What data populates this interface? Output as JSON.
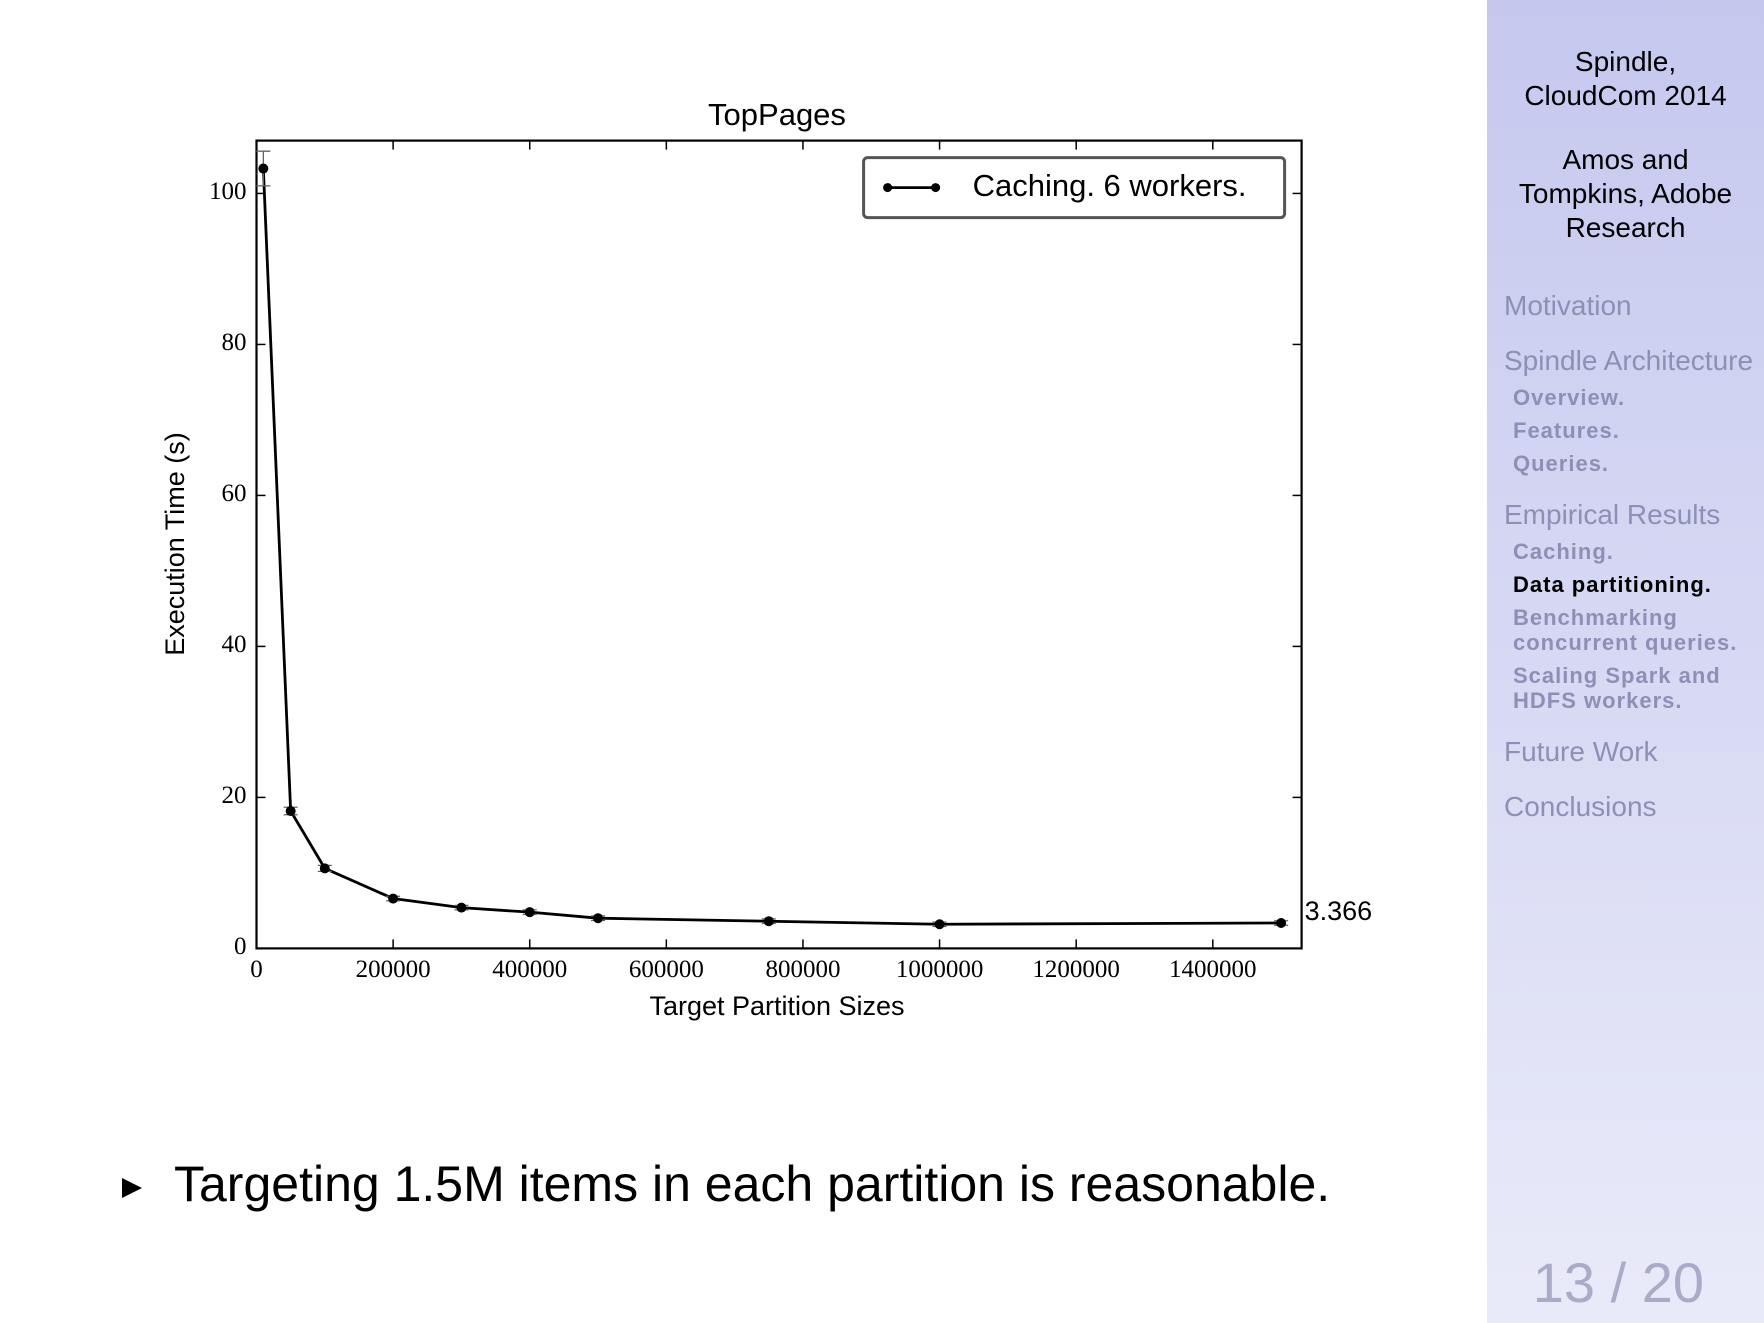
{
  "chart_data": {
    "type": "line",
    "title": "TopPages",
    "x_label": "Target Partition Sizes",
    "y_label": "Execution Time (s)",
    "x": [
      10000,
      50000,
      100000,
      200000,
      300000,
      400000,
      500000,
      750000,
      1000000,
      1500000
    ],
    "series": [
      {
        "name": "Caching. 6 workers.",
        "color": "#000000",
        "values": [
          103.3,
          18.2,
          10.6,
          6.6,
          5.4,
          4.8,
          4.0,
          3.6,
          3.2,
          3.366
        ],
        "errors": [
          2.3,
          0.5,
          0.4,
          0.3,
          0.3,
          0.3,
          0.3,
          0.3,
          0.3,
          0.3
        ]
      }
    ],
    "data_labels": "last",
    "xlim": [
      0,
      1530000
    ],
    "ylim": [
      0,
      107
    ],
    "xticks": [
      0,
      200000,
      400000,
      600000,
      800000,
      1000000,
      1200000,
      1400000
    ],
    "yticks": [
      0,
      20,
      40,
      60,
      80,
      100
    ],
    "grid": false,
    "legend": "upper right"
  },
  "sidebar": {
    "title": "Spindle, CloudCom 2014",
    "authors": "Amos and Tompkins, Adobe Research",
    "sections": [
      {
        "title": "Motivation",
        "subsections": []
      },
      {
        "title": "Spindle Architecture",
        "subsections": [
          {
            "label": "Overview.",
            "active": false
          },
          {
            "label": "Features.",
            "active": false
          },
          {
            "label": "Queries.",
            "active": false
          }
        ]
      },
      {
        "title": "Empirical Results",
        "subsections": [
          {
            "label": "Caching.",
            "active": false
          },
          {
            "label": "Data partitioning.",
            "active": true
          },
          {
            "label": "Benchmarking concurrent queries.",
            "active": false
          },
          {
            "label": "Scaling Spark and HDFS workers.",
            "active": false
          }
        ]
      },
      {
        "title": "Future Work",
        "subsections": []
      },
      {
        "title": "Conclusions",
        "subsections": []
      }
    ]
  },
  "bullet": "Targeting 1.5M items in each partition is reasonable.",
  "page_number": "13 / 20"
}
